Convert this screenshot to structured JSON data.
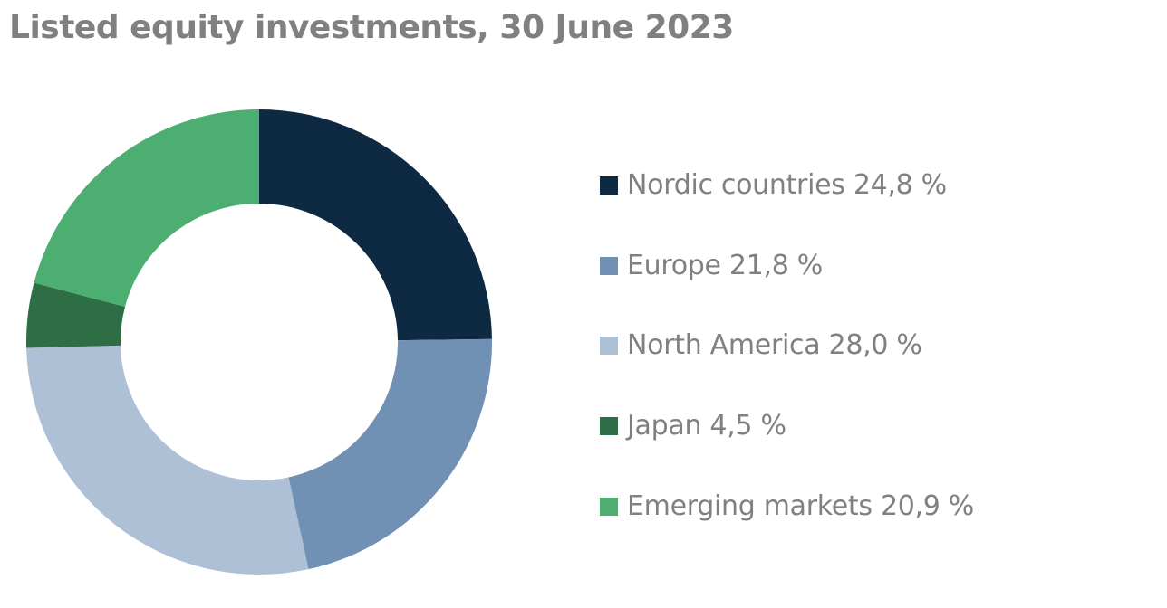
{
  "chart_data": {
    "type": "pie",
    "variant": "donut",
    "title": "Listed equity investments, 30 June 2023",
    "legend_position": "right",
    "slices": [
      {
        "label": "Nordic countries 24,8 %",
        "value": 24.8,
        "color": "#0d2a42"
      },
      {
        "label": "Europe 21,8 %",
        "value": 21.8,
        "color": "#7191b4"
      },
      {
        "label": "North America 28,0 %",
        "value": 28.0,
        "color": "#adc0d5"
      },
      {
        "label": "Japan 4,5 %",
        "value": 4.5,
        "color": "#2e6e45"
      },
      {
        "label": "Emerging markets 20,9 %",
        "value": 20.9,
        "color": "#4caf71"
      }
    ]
  }
}
